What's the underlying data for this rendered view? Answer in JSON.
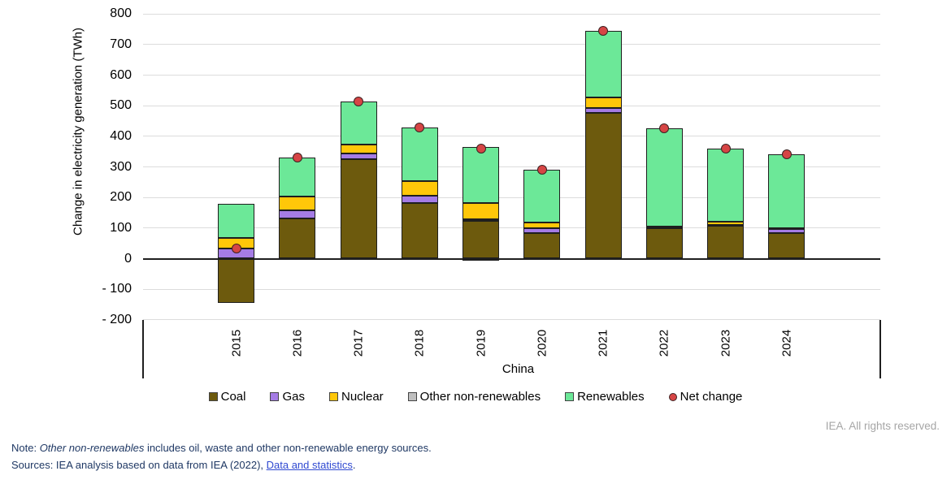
{
  "chart_data": {
    "type": "bar",
    "stacked": true,
    "title": "",
    "xlabel": "China",
    "ylabel": "Change in electricity generation (TWh)",
    "ylim": [
      -200,
      800
    ],
    "grid": true,
    "legend_position": "bottom",
    "categories": [
      "2015",
      "2016",
      "2017",
      "2018",
      "2019",
      "2020",
      "2021",
      "2022",
      "2023",
      "2024"
    ],
    "yticks": [
      {
        "label": "800",
        "value": 800
      },
      {
        "label": "700",
        "value": 700
      },
      {
        "label": "600",
        "value": 600
      },
      {
        "label": "500",
        "value": 500
      },
      {
        "label": "400",
        "value": 400
      },
      {
        "label": "300",
        "value": 300
      },
      {
        "label": "200",
        "value": 200
      },
      {
        "label": "100",
        "value": 100
      },
      {
        "label": "0",
        "value": 0
      },
      {
        "label": "- 100",
        "value": -100
      },
      {
        "label": "- 200",
        "value": -200
      }
    ],
    "series": [
      {
        "name": "Coal",
        "color": "#6d5a0d",
        "values": [
          -145,
          132,
          325,
          183,
          123,
          84,
          476,
          100,
          107,
          84
        ]
      },
      {
        "name": "Gas",
        "color": "#a57ce5",
        "values": [
          34,
          25,
          18,
          23,
          6,
          15,
          18,
          3,
          2,
          12
        ]
      },
      {
        "name": "Nuclear",
        "color": "#ffc709",
        "values": [
          35,
          45,
          30,
          47,
          53,
          18,
          33,
          3,
          13,
          0
        ]
      },
      {
        "name": "Other non-renewables",
        "color": "#bfbfbf",
        "values": [
          0,
          0,
          0,
          0,
          -5,
          0,
          0,
          0,
          0,
          4
        ]
      },
      {
        "name": "Renewables",
        "color": "#6ce898",
        "values": [
          109,
          130,
          140,
          175,
          182,
          175,
          219,
          319,
          238,
          242
        ]
      }
    ],
    "net_change": {
      "name": "Net change",
      "color": "#d64545",
      "values": [
        33,
        332,
        513,
        428,
        359,
        292,
        746,
        425,
        360,
        342
      ]
    }
  },
  "colors": {
    "gridline": "#dcdcdc",
    "axis": "#1f1f1f",
    "note_text": "#1f3864",
    "link": "#2f49d1",
    "rights_text": "#a6a6a6"
  },
  "footer": {
    "rights": "IEA. All rights reserved.",
    "note": {
      "prefix": "Note: ",
      "italic": "Other non-renewables",
      "suffix": " includes oil, waste and other non-renewable energy sources."
    },
    "sources": {
      "prefix": "Sources: IEA analysis based on data from IEA (2022), ",
      "link": "Data and statistics",
      "suffix": "."
    }
  }
}
